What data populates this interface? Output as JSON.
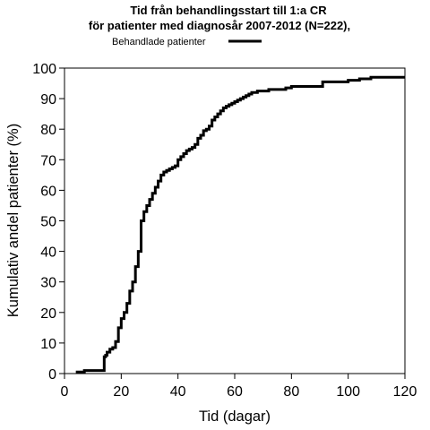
{
  "chart_data": {
    "type": "line",
    "title": "Tid från behandlingsstart till 1:a CR",
    "subtitle": "för patienter med diagnosår 2007-2012 (N=222),",
    "xlabel": "Tid (dagar)",
    "ylabel": "Kumulativ andel patienter (%)",
    "xlim": [
      0,
      120
    ],
    "ylim": [
      0,
      100
    ],
    "xticks": [
      0,
      20,
      40,
      60,
      80,
      100,
      120
    ],
    "yticks": [
      0,
      10,
      20,
      30,
      40,
      50,
      60,
      70,
      80,
      90,
      100
    ],
    "xtick_labels": [
      "0",
      "20",
      "40",
      "60",
      "80",
      "100",
      "120"
    ],
    "ytick_labels": [
      "0",
      "10",
      "20",
      "30",
      "40",
      "50",
      "60",
      "70",
      "80",
      "90",
      "100"
    ],
    "grid": false,
    "legend_position": "top",
    "line_style": "step",
    "series": [
      {
        "name": "Behandlade patienter",
        "color": "#000000",
        "x": [
          4,
          7,
          11,
          14,
          14.5,
          15,
          16,
          17,
          18,
          19,
          20,
          21,
          22,
          23,
          24,
          25,
          26,
          27,
          28,
          29,
          30,
          31,
          32,
          33,
          34,
          35,
          36,
          37,
          38,
          39,
          40,
          41,
          42,
          43,
          44,
          45,
          46,
          47,
          48,
          49,
          50,
          51,
          52,
          53,
          54,
          55,
          56,
          57,
          58,
          59,
          60,
          61,
          62,
          63,
          64,
          65,
          66,
          67,
          68,
          70,
          72,
          75,
          78,
          80,
          85,
          91,
          95,
          100,
          102,
          104,
          106,
          108,
          110,
          112,
          120
        ],
        "y": [
          0.5,
          1,
          1,
          5.5,
          6,
          7,
          8,
          8.5,
          10.5,
          15,
          18,
          20,
          23,
          27,
          30,
          35,
          40,
          50,
          53,
          55,
          57,
          59,
          61,
          63,
          65,
          66,
          66.5,
          67,
          67.5,
          68,
          70,
          71,
          72,
          73,
          73.5,
          74,
          75,
          77,
          78,
          79.5,
          80,
          81,
          83,
          84,
          85,
          86,
          87,
          87.5,
          88,
          88.5,
          89,
          89.5,
          90,
          90.5,
          91,
          91.5,
          92,
          92,
          92.5,
          92.5,
          93,
          93,
          93.5,
          94,
          94,
          95.5,
          95.5,
          96,
          96,
          96.5,
          96.5,
          97,
          97,
          97,
          97
        ]
      }
    ]
  }
}
